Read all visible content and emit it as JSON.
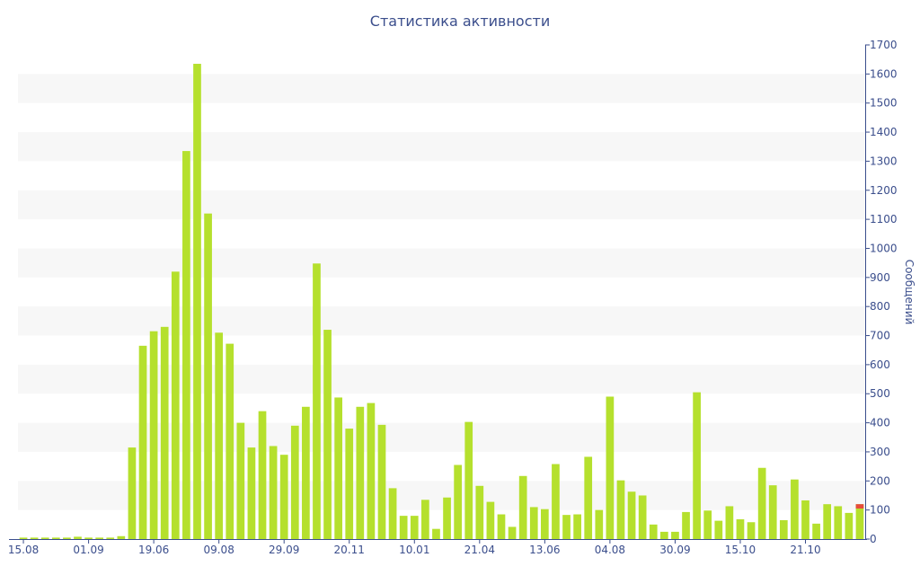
{
  "chart_data": {
    "type": "bar",
    "title": "Статистика активности",
    "xlabel": "",
    "ylabel": "Сообщений",
    "ylim": [
      0,
      1700
    ],
    "yticks": [
      0,
      100,
      200,
      300,
      400,
      500,
      600,
      700,
      800,
      900,
      1000,
      1100,
      1200,
      1300,
      1400,
      1500,
      1600,
      1700
    ],
    "x_tick_labels": [
      {
        "index": 0,
        "label": "15.08"
      },
      {
        "index": 6,
        "label": "01.09"
      },
      {
        "index": 12,
        "label": "19.06"
      },
      {
        "index": 18,
        "label": "09.08"
      },
      {
        "index": 24,
        "label": "29.09"
      },
      {
        "index": 30,
        "label": "20.11"
      },
      {
        "index": 36,
        "label": "10.01"
      },
      {
        "index": 42,
        "label": "21.04"
      },
      {
        "index": 48,
        "label": "13.06"
      },
      {
        "index": 54,
        "label": "04.08"
      },
      {
        "index": 60,
        "label": "30.09"
      },
      {
        "index": 66,
        "label": "15.10"
      },
      {
        "index": 72,
        "label": "21.10"
      }
    ],
    "grid": "alternating-bands",
    "colors": {
      "bar": "#b5e02d",
      "highlight": "#e74c3c",
      "band": "#f7f7f7",
      "axis": "#3b4e8c"
    },
    "values": [
      5,
      5,
      5,
      5,
      5,
      8,
      5,
      5,
      5,
      10,
      315,
      665,
      715,
      730,
      920,
      1335,
      1635,
      1120,
      710,
      672,
      400,
      315,
      440,
      320,
      290,
      390,
      455,
      948,
      720,
      487,
      380,
      455,
      468,
      393,
      175,
      80,
      80,
      135,
      35,
      143,
      255,
      403,
      183,
      128,
      85,
      42,
      217,
      110,
      103,
      258,
      83,
      85,
      283,
      100,
      490,
      202,
      163,
      150,
      50,
      25,
      25,
      93,
      505,
      98,
      63,
      113,
      68,
      58,
      245,
      185,
      65,
      205,
      133,
      53,
      120,
      113,
      90,
      120
    ],
    "highlight_last": 15
  }
}
